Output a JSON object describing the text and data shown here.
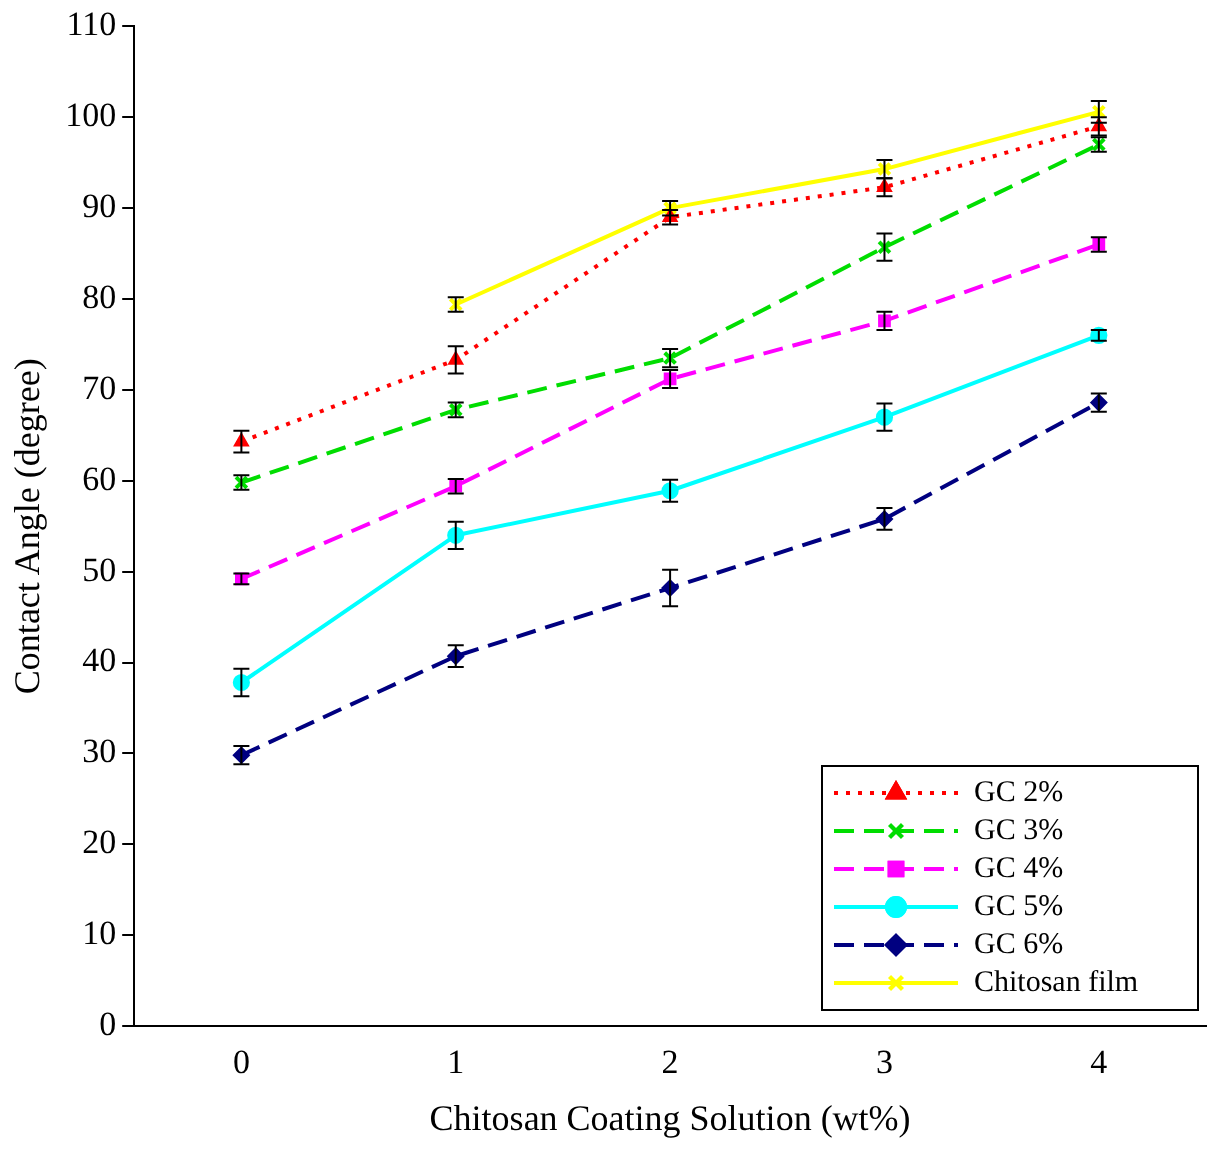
{
  "chart_data": {
    "type": "line",
    "xlabel": "Chitosan Coating Solution (wt%)",
    "ylabel": "Contact Angle (degree)",
    "categories": [
      "0",
      "1",
      "2",
      "3",
      "4"
    ],
    "ylim": [
      0,
      110
    ],
    "yticks": [
      0,
      10,
      20,
      30,
      40,
      50,
      60,
      70,
      80,
      90,
      100,
      110
    ],
    "grid": false,
    "legend": "bottom right",
    "series": [
      {
        "name": "GC 2%",
        "color": "#ff0000",
        "marker": "triangle",
        "line_style": "dotted",
        "values": [
          64.3,
          73.3,
          89,
          92.3,
          99
        ],
        "errors": [
          1.2,
          1.5,
          0.8,
          1,
          1
        ]
      },
      {
        "name": "GC 3%",
        "color": "#00dd00",
        "marker": "cross",
        "line_style": "dashed",
        "values": [
          59.8,
          67.8,
          73.5,
          85.7,
          97
        ],
        "errors": [
          0.8,
          0.8,
          1,
          1.5,
          0.8
        ]
      },
      {
        "name": "GC 4%",
        "color": "#ff00ff",
        "marker": "square",
        "line_style": "dashed",
        "values": [
          49.2,
          59.4,
          71.2,
          77.6,
          86
        ],
        "errors": [
          0.6,
          0.8,
          1,
          1,
          0.8
        ]
      },
      {
        "name": "GC 5%",
        "color": "#00ffff",
        "marker": "circle",
        "line_style": "solid",
        "values": [
          37.8,
          54,
          58.9,
          67,
          76
        ],
        "errors": [
          1.5,
          1.5,
          1.2,
          1.5,
          0.6
        ]
      },
      {
        "name": "GC 6%",
        "color": "#000080",
        "marker": "diamond",
        "line_style": "dashed",
        "values": [
          29.8,
          40.7,
          48.2,
          55.8,
          68.6
        ],
        "errors": [
          1,
          1.2,
          2,
          1.2,
          1
        ]
      },
      {
        "name": "Chitosan film",
        "color": "#ffff00",
        "marker": "cross",
        "line_style": "solid",
        "values": [
          null,
          79.4,
          90,
          94.3,
          100.6
        ],
        "errors": [
          null,
          0.8,
          0.8,
          1,
          1.2
        ]
      }
    ]
  }
}
